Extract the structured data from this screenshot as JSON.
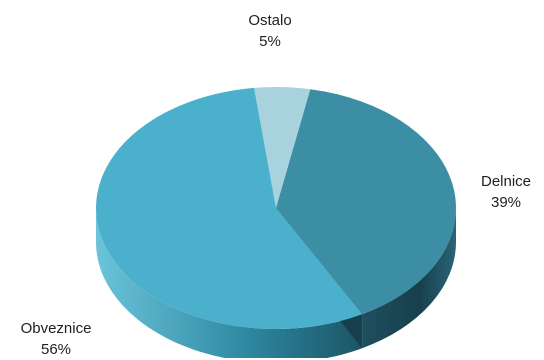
{
  "chart_data": {
    "type": "pie",
    "style": "3d",
    "slices": [
      {
        "label": "Ostalo",
        "value": 5,
        "value_label": "5%",
        "color": "#a8d2de"
      },
      {
        "label": "Delnice",
        "value": 39,
        "value_label": "39%",
        "color": "#3c8ea4"
      },
      {
        "label": "Obveznice",
        "value": 56,
        "value_label": "56%",
        "color": "#4ab0cc"
      }
    ],
    "side_colors": {
      "Delnice": "#1f4f5f",
      "Obveznice": "#2f7f96"
    },
    "title": "",
    "legend": "none"
  }
}
